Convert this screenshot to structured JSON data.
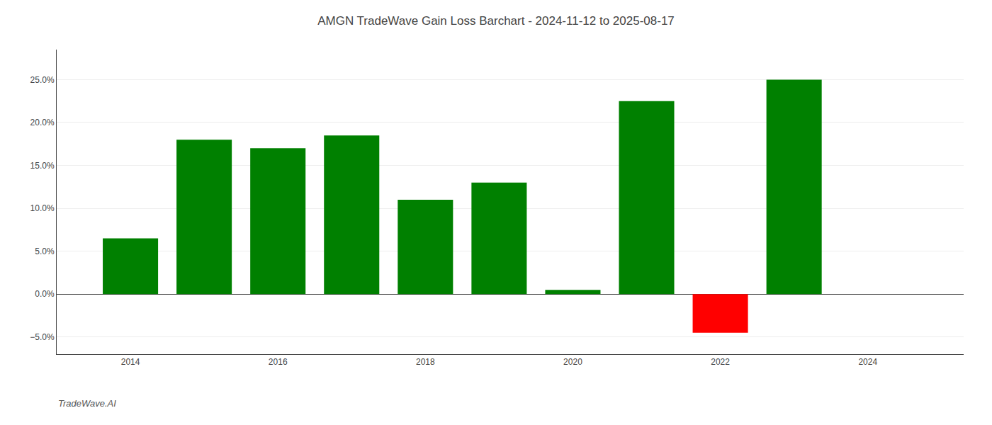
{
  "chart_data": {
    "type": "bar",
    "title": "AMGN TradeWave Gain Loss Barchart - 2024-11-12 to 2025-08-17",
    "annotations": [
      "TradeWave.AI"
    ],
    "x": [
      2014,
      2015,
      2016,
      2017,
      2018,
      2019,
      2020,
      2021,
      2022,
      2023
    ],
    "values": [
      0.065,
      0.18,
      0.17,
      0.185,
      0.11,
      0.13,
      0.005,
      0.225,
      -0.045,
      0.25
    ],
    "colors": [
      "#008000",
      "#008000",
      "#008000",
      "#008000",
      "#008000",
      "#008000",
      "#008000",
      "#008000",
      "#ff0000",
      "#008000"
    ],
    "xlim": [
      2013.0,
      2025.3
    ],
    "xticks": [
      2014,
      2016,
      2018,
      2020,
      2022,
      2024
    ],
    "ylim": [
      -0.07,
      0.285
    ],
    "yticks": [
      {
        "value": -0.05,
        "label": "−5.0%"
      },
      {
        "value": 0.0,
        "label": "0.0%"
      },
      {
        "value": 0.05,
        "label": "5.0%"
      },
      {
        "value": 0.1,
        "label": "10.0%"
      },
      {
        "value": 0.15,
        "label": "15.0%"
      },
      {
        "value": 0.2,
        "label": "20.0%"
      },
      {
        "value": 0.25,
        "label": "25.0%"
      }
    ],
    "grid": true
  }
}
